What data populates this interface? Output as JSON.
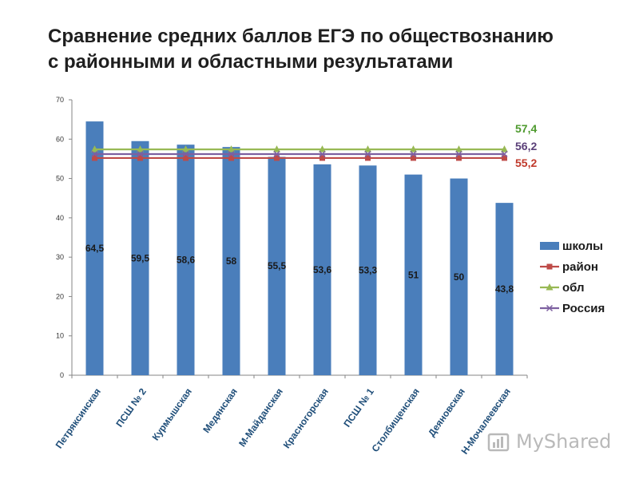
{
  "title": {
    "line1": "Сравнение средних баллов ЕГЭ по обществознанию",
    "line2": "с районными и областными результатами"
  },
  "watermark": "MyShared",
  "chart_data": {
    "type": "bar",
    "categories": [
      "Петряксинская",
      "ПСШ № 2",
      "Курмышская",
      "Медянская",
      "М-Майданская",
      "Красногорская",
      "ПСШ № 1",
      "Столбищенская",
      "Деяновская",
      "Н-Мочалеевская"
    ],
    "ylim": [
      0,
      70
    ],
    "yticks": [
      0,
      10,
      20,
      30,
      40,
      50,
      60,
      70
    ],
    "series": [
      {
        "name": "школы",
        "kind": "bar",
        "color": "#4a7ebb",
        "values": [
          64.5,
          59.5,
          58.6,
          58,
          55.5,
          53.6,
          53.3,
          51,
          50,
          43.8
        ],
        "labels": [
          "64,5",
          "59,5",
          "58,6",
          "58",
          "55,5",
          "53,6",
          "53,3",
          "51",
          "50",
          "43,8"
        ]
      },
      {
        "name": "район",
        "kind": "line",
        "marker": "square",
        "color": "#be4b48",
        "value": 55.2
      },
      {
        "name": "обл",
        "kind": "line",
        "marker": "triangle",
        "color": "#98b954",
        "value": 57.4
      },
      {
        "name": "Россия",
        "kind": "line",
        "marker": "x",
        "color": "#7d60a0",
        "value": 56.2
      }
    ],
    "line_labels": [
      {
        "text": "57,4",
        "color": "#4e9a2e",
        "value": 57.4
      },
      {
        "text": "56,2",
        "color": "#5a3f78",
        "value": 56.2
      },
      {
        "text": "55,2",
        "color": "#c0392b",
        "value": 55.2
      }
    ],
    "legend_position": "right",
    "grid": false
  }
}
